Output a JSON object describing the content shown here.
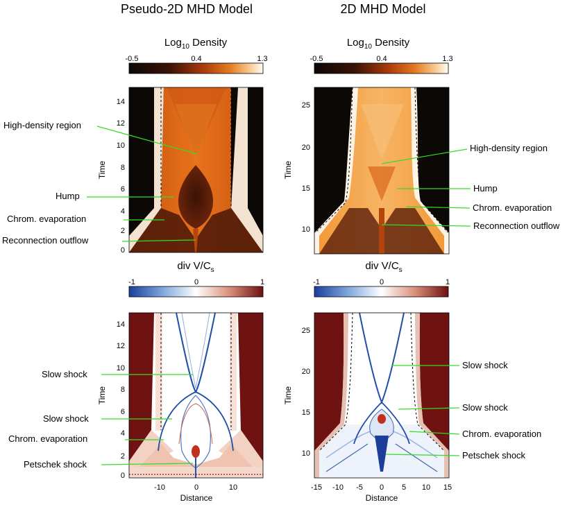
{
  "titles": {
    "left": "Pseudo-2D MHD Model",
    "right": "2D MHD Model"
  },
  "colorbars": {
    "density": {
      "label_main": "Log",
      "label_sub": "10",
      "label_rest": " Density",
      "ticks": [
        "-0.5",
        "0.4",
        "1.3"
      ]
    },
    "divv": {
      "label_main": "div V/C",
      "label_sub": "s",
      "ticks": [
        "-1",
        "0",
        "1"
      ]
    }
  },
  "axes": {
    "ylabel": "Time",
    "xlabel": "Distance",
    "left_x_ticks": [
      "-10",
      "0",
      "10"
    ],
    "right_x_ticks": [
      "-15",
      "-10",
      "-5",
      "0",
      "5",
      "10",
      "15"
    ],
    "left_y_ticks": [
      "0",
      "2",
      "4",
      "6",
      "8",
      "10",
      "12",
      "14"
    ],
    "right_y_ticks": [
      "10",
      "15",
      "20",
      "25"
    ]
  },
  "annotations": {
    "top_left": [
      "High-density region",
      "Hump",
      "Chrom. evaporation",
      "Reconnection outflow"
    ],
    "top_right": [
      "High-density region",
      "Hump",
      "Chrom. evaporation",
      "Reconnection outflow"
    ],
    "bottom_left": [
      "Slow shock",
      "Slow shock",
      "Chrom. evaporation",
      "Petschek shock"
    ],
    "bottom_right": [
      "Slow shock",
      "Slow shock",
      "Chrom. evaporation",
      "Petschek shock"
    ]
  },
  "colors": {
    "density_dark": "#140c08",
    "density_mid": "#c04a12",
    "density_high": "#f08a30",
    "density_max": "#fffaf0",
    "div_neg": "#1f4fa8",
    "div_zero": "#ffffff",
    "div_pos": "#7a1515",
    "leader": "#33dd22"
  }
}
